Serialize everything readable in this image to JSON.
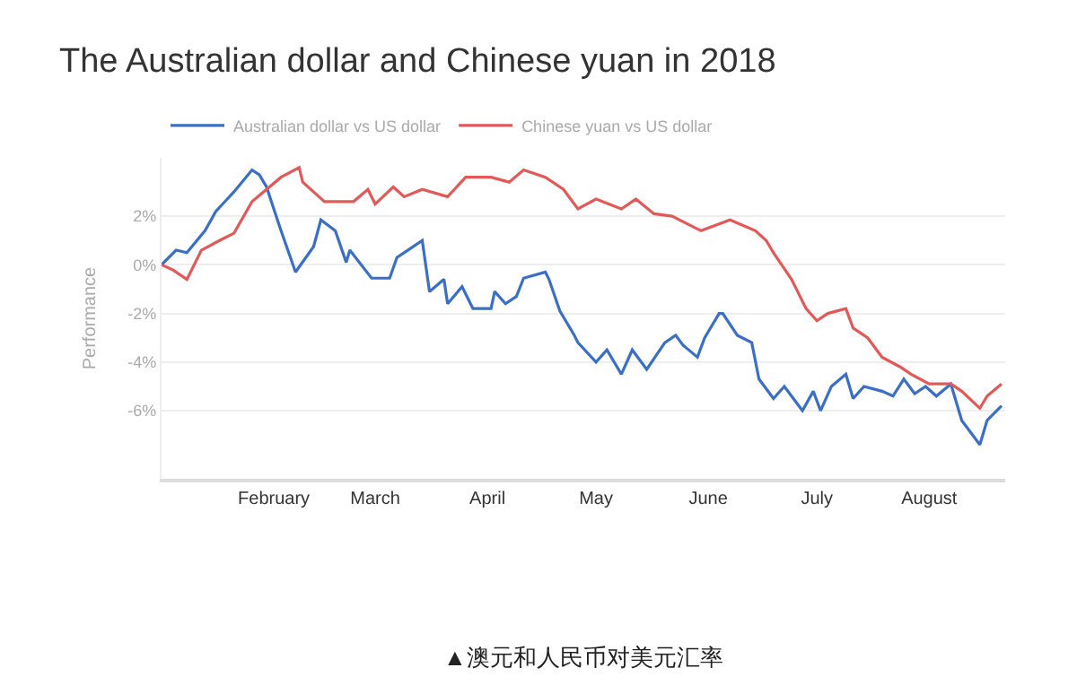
{
  "chart_data": {
    "type": "line",
    "title": "The Australian dollar and Chinese yuan in 2018",
    "ylabel": "Performance",
    "annotations": [
      "▲澳元和人民币对美元汇率"
    ],
    "xlim": [
      "2018-01-01",
      "2018-08-22"
    ],
    "xticks": [
      {
        "value": "2018-02-01",
        "label": "February"
      },
      {
        "value": "2018-03-01",
        "label": "March"
      },
      {
        "value": "2018-04-01",
        "label": "April"
      },
      {
        "value": "2018-05-01",
        "label": "May"
      },
      {
        "value": "2018-06-01",
        "label": "June"
      },
      {
        "value": "2018-07-01",
        "label": "July"
      },
      {
        "value": "2018-08-01",
        "label": "August"
      }
    ],
    "ylim": [
      -8.8,
      4.4
    ],
    "yticks": [
      {
        "value": -6,
        "label": "-6%"
      },
      {
        "value": -4,
        "label": "-4%"
      },
      {
        "value": -2,
        "label": "-2%"
      },
      {
        "value": 0,
        "label": "0%"
      },
      {
        "value": 2,
        "label": "2%"
      }
    ],
    "grid": "y",
    "legend": "top left",
    "marker": "none",
    "line_style": "solid",
    "series": [
      {
        "name": "Australian dollar vs US dollar",
        "color": "#3a6fc4",
        "x": [
          "2018-01-01",
          "2018-01-05",
          "2018-01-08",
          "2018-01-13",
          "2018-01-16",
          "2018-01-21",
          "2018-01-26",
          "2018-01-28",
          "2018-01-30",
          "2018-02-01",
          "2018-02-03",
          "2018-02-07",
          "2018-02-12",
          "2018-02-14",
          "2018-02-18",
          "2018-02-21",
          "2018-02-22",
          "2018-02-28",
          "2018-03-05",
          "2018-03-07",
          "2018-03-10",
          "2018-03-14",
          "2018-03-16",
          "2018-03-20",
          "2018-03-21",
          "2018-03-25",
          "2018-03-28",
          "2018-04-02",
          "2018-04-03",
          "2018-04-06",
          "2018-04-09",
          "2018-04-11",
          "2018-04-17",
          "2018-04-18",
          "2018-04-21",
          "2018-04-25",
          "2018-04-26",
          "2018-05-01",
          "2018-05-04",
          "2018-05-08",
          "2018-05-11",
          "2018-05-15",
          "2018-05-20",
          "2018-05-23",
          "2018-05-25",
          "2018-05-29",
          "2018-05-31",
          "2018-06-04",
          "2018-06-05",
          "2018-06-09",
          "2018-06-13",
          "2018-06-15",
          "2018-06-19",
          "2018-06-22",
          "2018-06-27",
          "2018-06-30",
          "2018-07-02",
          "2018-07-05",
          "2018-07-09",
          "2018-07-11",
          "2018-07-14",
          "2018-07-19",
          "2018-07-22",
          "2018-07-25",
          "2018-07-28",
          "2018-07-31",
          "2018-08-03",
          "2018-08-07",
          "2018-08-10",
          "2018-08-15",
          "2018-08-17",
          "2018-08-21"
        ],
        "values": [
          0.0,
          0.6,
          0.5,
          1.4,
          2.2,
          3.0,
          3.9,
          3.7,
          3.2,
          2.3,
          1.4,
          -0.3,
          0.75,
          1.85,
          1.4,
          0.1,
          0.6,
          -0.55,
          -0.55,
          0.3,
          0.6,
          1.0,
          -1.1,
          -0.6,
          -1.6,
          -0.9,
          -1.8,
          -1.8,
          -1.1,
          -1.6,
          -1.3,
          -0.55,
          -0.3,
          -0.6,
          -1.9,
          -2.9,
          -3.2,
          -4.0,
          -3.5,
          -4.5,
          -3.5,
          -4.3,
          -3.2,
          -2.9,
          -3.3,
          -3.8,
          -3.0,
          -2.0,
          -2.0,
          -2.9,
          -3.2,
          -4.7,
          -5.5,
          -5.0,
          -6.0,
          -5.2,
          -6.0,
          -5.0,
          -4.5,
          -5.5,
          -5.0,
          -5.2,
          -5.4,
          -4.7,
          -5.3,
          -5.0,
          -5.4,
          -4.9,
          -6.4,
          -7.4,
          -6.4,
          -5.8
        ]
      },
      {
        "name": "Chinese yuan vs US dollar",
        "color": "#e05a5a",
        "x": [
          "2018-01-01",
          "2018-01-04",
          "2018-01-08",
          "2018-01-12",
          "2018-01-17",
          "2018-01-21",
          "2018-01-26",
          "2018-02-03",
          "2018-02-08",
          "2018-02-09",
          "2018-02-15",
          "2018-02-23",
          "2018-02-27",
          "2018-03-01",
          "2018-03-06",
          "2018-03-09",
          "2018-03-14",
          "2018-03-21",
          "2018-03-26",
          "2018-04-02",
          "2018-04-07",
          "2018-04-11",
          "2018-04-17",
          "2018-04-22",
          "2018-04-26",
          "2018-05-01",
          "2018-05-08",
          "2018-05-12",
          "2018-05-17",
          "2018-05-22",
          "2018-05-30",
          "2018-06-07",
          "2018-06-14",
          "2018-06-17",
          "2018-06-19",
          "2018-06-24",
          "2018-06-28",
          "2018-07-01",
          "2018-07-04",
          "2018-07-09",
          "2018-07-11",
          "2018-07-15",
          "2018-07-19",
          "2018-07-24",
          "2018-07-27",
          "2018-08-01",
          "2018-08-07",
          "2018-08-10",
          "2018-08-15",
          "2018-08-17",
          "2018-08-21"
        ],
        "values": [
          0.0,
          -0.2,
          -0.6,
          0.6,
          1.0,
          1.3,
          2.6,
          3.6,
          4.0,
          3.4,
          2.6,
          2.6,
          3.1,
          2.5,
          3.2,
          2.8,
          3.1,
          2.8,
          3.6,
          3.6,
          3.4,
          3.9,
          3.6,
          3.1,
          2.3,
          2.7,
          2.3,
          2.7,
          2.1,
          2.0,
          1.4,
          1.85,
          1.4,
          1.0,
          0.5,
          -0.6,
          -1.8,
          -2.3,
          -2.0,
          -1.8,
          -2.6,
          -3.0,
          -3.8,
          -4.2,
          -4.5,
          -4.9,
          -4.9,
          -5.2,
          -5.9,
          -5.4,
          -4.9
        ]
      }
    ]
  }
}
